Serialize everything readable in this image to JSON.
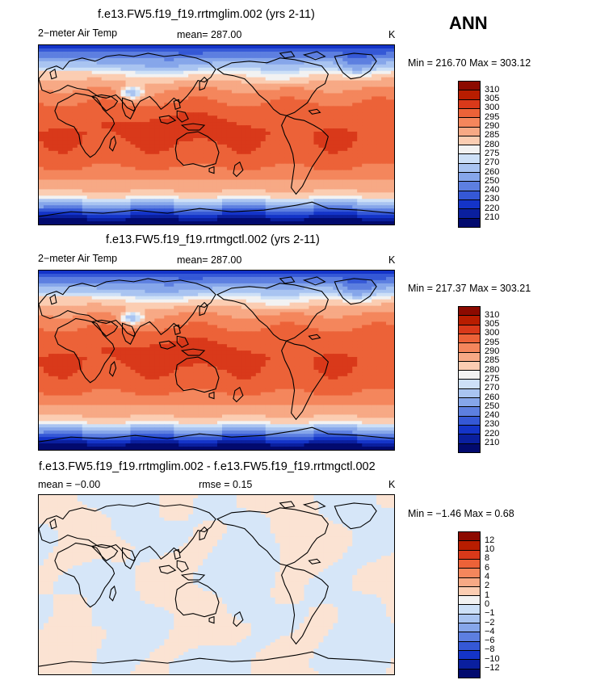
{
  "season": "ANN",
  "panels": [
    {
      "title": "f.e13.FW5.f19_f19.rrtmglim.002 (yrs 2-11)",
      "left_label": "2−meter Air Temp",
      "mid_label": "mean=  287.00",
      "units": "K",
      "minmax": "Min = 216.70 Max = 303.12",
      "field": "temperature",
      "colorbar": [
        "310",
        "305",
        "300",
        "295",
        "290",
        "285",
        "280",
        "275",
        "270",
        "260",
        "250",
        "240",
        "230",
        "220",
        "210"
      ]
    },
    {
      "title": "f.e13.FW5.f19_f19.rrtmgctl.002 (yrs 2-11)",
      "left_label": "2−meter Air Temp",
      "mid_label": "mean=  287.00",
      "units": "K",
      "minmax": "Min = 217.37 Max = 303.21",
      "field": "temperature",
      "colorbar": [
        "310",
        "305",
        "300",
        "295",
        "290",
        "285",
        "280",
        "275",
        "270",
        "260",
        "250",
        "240",
        "230",
        "220",
        "210"
      ]
    },
    {
      "title": "f.e13.FW5.f19_f19.rrtmglim.002 - f.e13.FW5.f19_f19.rrtmgctl.002",
      "left_label": "mean =   −0.00",
      "mid_label": "rmse =    0.15",
      "units": "K",
      "minmax": "Min =  −1.46 Max =   0.68",
      "field": "difference",
      "colorbar": [
        "12",
        "10",
        "8",
        "6",
        "4",
        "2",
        "1",
        "0",
        "−1",
        "−2",
        "−4",
        "−6",
        "−8",
        "−10",
        "−12"
      ]
    }
  ],
  "palette": [
    "#8c0a00",
    "#b81d00",
    "#d9391a",
    "#ec6238",
    "#f4865c",
    "#f7a985",
    "#fbcdb2",
    "#f2f2f2",
    "#cde0f7",
    "#a9c4f1",
    "#86a6ea",
    "#5d7fe0",
    "#3558d6",
    "#1434c8",
    "#0a1f9e",
    "#020a6e"
  ]
}
